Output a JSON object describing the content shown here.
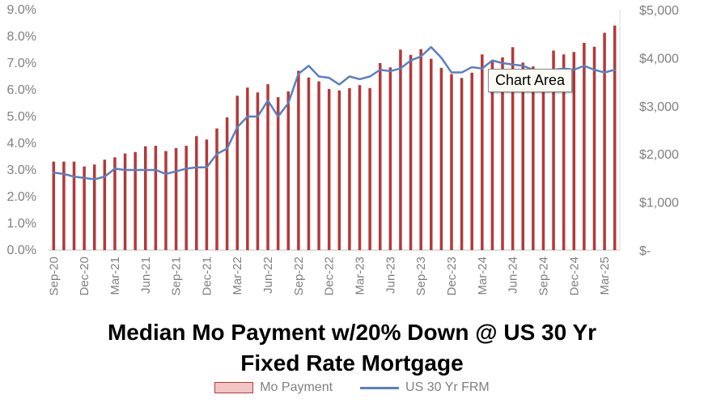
{
  "chart_data": {
    "type": "bar",
    "title_lines": [
      "Median Mo Payment w/20% Down @ US 30 Yr",
      "Fixed Rate Mortgage"
    ],
    "categories": [
      "Sep-20",
      "Oct-20",
      "Nov-20",
      "Dec-20",
      "Jan-21",
      "Feb-21",
      "Mar-21",
      "Apr-21",
      "May-21",
      "Jun-21",
      "Jul-21",
      "Aug-21",
      "Sep-21",
      "Oct-21",
      "Nov-21",
      "Dec-21",
      "Jan-22",
      "Feb-22",
      "Mar-22",
      "Apr-22",
      "May-22",
      "Jun-22",
      "Jul-22",
      "Aug-22",
      "Sep-22",
      "Oct-22",
      "Nov-22",
      "Dec-22",
      "Jan-23",
      "Feb-23",
      "Mar-23",
      "Apr-23",
      "May-23",
      "Jun-23",
      "Jul-23",
      "Aug-23",
      "Sep-23",
      "Oct-23",
      "Nov-23",
      "Dec-23",
      "Jan-24",
      "Feb-24",
      "Mar-24",
      "Apr-24",
      "May-24",
      "Jun-24",
      "Jul-24",
      "Aug-24",
      "Sep-24",
      "Oct-24",
      "Nov-24",
      "Dec-24",
      "Jan-25",
      "Feb-25",
      "Mar-25",
      "Apr-25"
    ],
    "x_tick_labels": [
      "Sep-20",
      "Dec-20",
      "Mar-21",
      "Jun-21",
      "Sep-21",
      "Dec-21",
      "Mar-22",
      "Jun-22",
      "Sep-22",
      "Dec-22",
      "Mar-23",
      "Jun-23",
      "Sep-23",
      "Dec-23",
      "Mar-24",
      "Jun-24",
      "Sep-24",
      "Dec-24",
      "Mar-25"
    ],
    "series": [
      {
        "name": "Mo Payment",
        "axis": "right",
        "kind": "bar",
        "color": "#b33a3a",
        "values": [
          1840,
          1840,
          1840,
          1740,
          1780,
          1880,
          1930,
          2010,
          2040,
          2160,
          2170,
          2060,
          2120,
          2170,
          2370,
          2300,
          2530,
          2760,
          3210,
          3380,
          3280,
          3450,
          3180,
          3300,
          3730,
          3590,
          3510,
          3350,
          3320,
          3370,
          3430,
          3370,
          3890,
          3800,
          4170,
          4060,
          4180,
          3980,
          3790,
          3660,
          3580,
          3690,
          4070,
          3940,
          4010,
          4220,
          3900,
          3820,
          3710,
          4150,
          4070,
          4120,
          4310,
          4230,
          4520,
          4670
        ]
      },
      {
        "name": "US 30 Yr FRM",
        "axis": "left",
        "kind": "line",
        "color": "#5b7fc0",
        "values": [
          2.9,
          2.85,
          2.75,
          2.7,
          2.65,
          2.75,
          3.05,
          3.0,
          3.0,
          3.0,
          3.0,
          2.85,
          2.95,
          3.05,
          3.1,
          3.1,
          3.6,
          3.8,
          4.6,
          5.0,
          5.0,
          5.6,
          5.0,
          5.5,
          6.6,
          6.9,
          6.5,
          6.45,
          6.2,
          6.5,
          6.4,
          6.5,
          6.75,
          6.7,
          6.8,
          7.1,
          7.25,
          7.6,
          7.2,
          6.65,
          6.65,
          6.85,
          6.8,
          7.1,
          7.0,
          6.95,
          6.9,
          6.75,
          6.7,
          6.75,
          6.8,
          6.75,
          6.9,
          6.75,
          6.65,
          6.75
        ]
      }
    ],
    "left_axis": {
      "min": 0,
      "max": 9,
      "step": 1,
      "tick_labels": [
        "0.0%",
        "1.0%",
        "2.0%",
        "3.0%",
        "4.0%",
        "5.0%",
        "6.0%",
        "7.0%",
        "8.0%",
        "9.0%"
      ]
    },
    "right_axis": {
      "min": 0,
      "max": 5000,
      "step": 1000,
      "tick_labels": [
        "$-",
        "$1,000",
        "$2,000",
        "$3,000",
        "$4,000",
        "$5,000"
      ]
    },
    "grid": false,
    "legend_placement": "bottom"
  },
  "legend": {
    "bar_label": "Mo Payment",
    "line_label": "US 30 Yr FRM"
  },
  "tooltip": {
    "label": "Chart Area"
  }
}
